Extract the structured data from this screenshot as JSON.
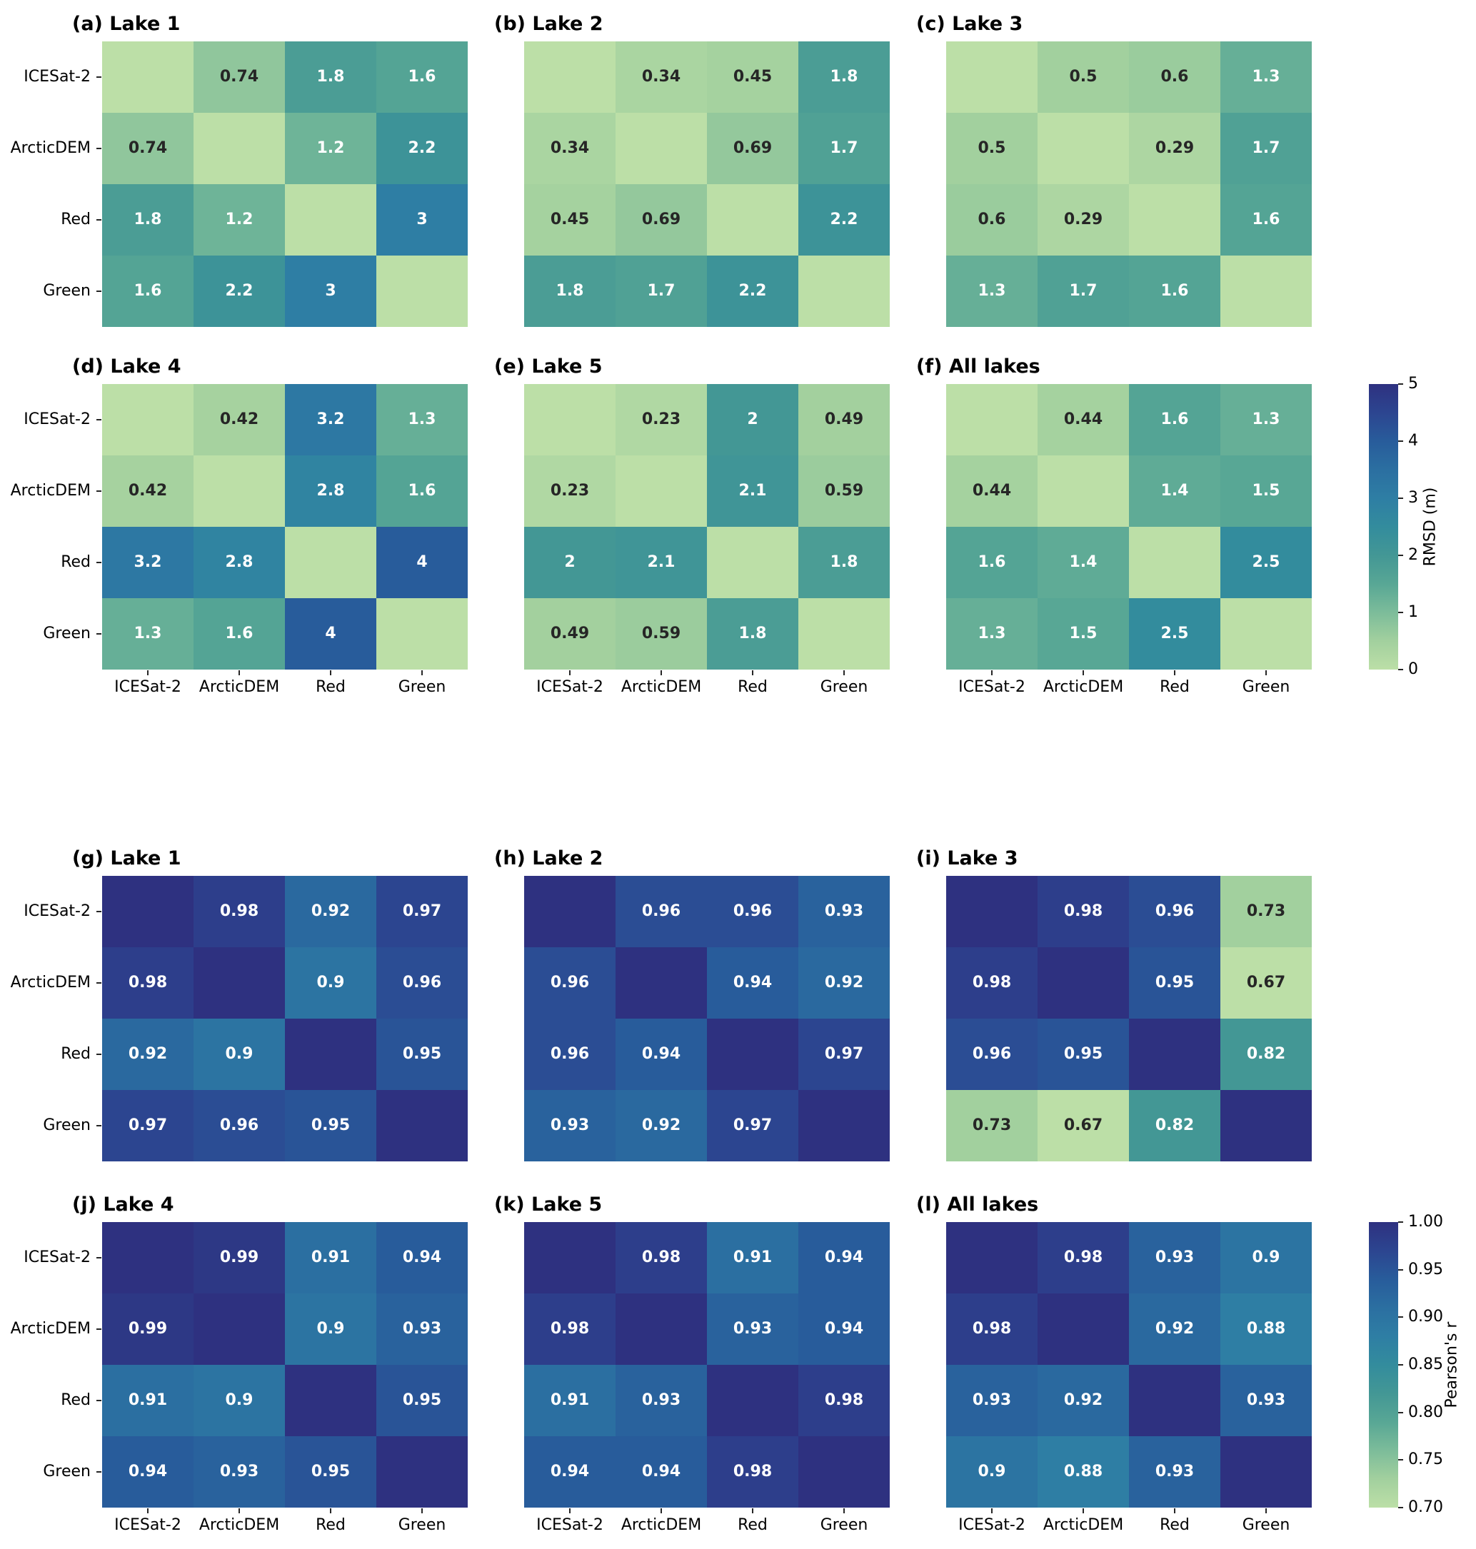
{
  "figure": {
    "background": "#ffffff",
    "text_dark": "#262626",
    "text_light": "#ffffff"
  },
  "chart_data": {
    "type": "heatmap",
    "categories": [
      "ICESat-2",
      "ArcticDEM",
      "Red",
      "Green"
    ],
    "colormap_stops": [
      [
        0.0,
        "#bcdfa7"
      ],
      [
        0.1,
        "#a2d09e"
      ],
      [
        0.2,
        "#7cbc9a"
      ],
      [
        0.3,
        "#58a795"
      ],
      [
        0.4,
        "#439795"
      ],
      [
        0.5,
        "#338c9d"
      ],
      [
        0.6,
        "#2e7ea4"
      ],
      [
        0.7,
        "#2b6fa1"
      ],
      [
        0.8,
        "#285c9b"
      ],
      [
        0.9,
        "#2c4590"
      ],
      [
        1.0,
        "#2e3180"
      ]
    ],
    "panels": [
      {
        "id": "a",
        "title": "(a) Lake 1",
        "metric": "RMSD (m)",
        "vmin": 0,
        "vmax": 5,
        "col": 0,
        "row": 0,
        "yticks": true,
        "xticks": false,
        "values": [
          [
            0,
            0.74,
            1.8,
            1.6
          ],
          [
            0.74,
            0,
            1.2,
            2.2
          ],
          [
            1.8,
            1.2,
            0,
            3
          ],
          [
            1.6,
            2.2,
            3,
            0
          ]
        ],
        "labels": [
          [
            "",
            "0.74",
            "1.8",
            "1.6"
          ],
          [
            "0.74",
            "",
            "1.2",
            "2.2"
          ],
          [
            "1.8",
            "1.2",
            "",
            "3"
          ],
          [
            "1.6",
            "2.2",
            "3",
            ""
          ]
        ]
      },
      {
        "id": "b",
        "title": "(b) Lake 2",
        "metric": "RMSD (m)",
        "vmin": 0,
        "vmax": 5,
        "col": 1,
        "row": 0,
        "yticks": false,
        "xticks": false,
        "values": [
          [
            0,
            0.34,
            0.45,
            1.8
          ],
          [
            0.34,
            0,
            0.69,
            1.7
          ],
          [
            0.45,
            0.69,
            0,
            2.2
          ],
          [
            1.8,
            1.7,
            2.2,
            0
          ]
        ],
        "labels": [
          [
            "",
            "0.34",
            "0.45",
            "1.8"
          ],
          [
            "0.34",
            "",
            "0.69",
            "1.7"
          ],
          [
            "0.45",
            "0.69",
            "",
            "2.2"
          ],
          [
            "1.8",
            "1.7",
            "2.2",
            ""
          ]
        ]
      },
      {
        "id": "c",
        "title": "(c) Lake 3",
        "metric": "RMSD (m)",
        "vmin": 0,
        "vmax": 5,
        "col": 2,
        "row": 0,
        "yticks": false,
        "xticks": false,
        "values": [
          [
            0,
            0.5,
            0.6,
            1.3
          ],
          [
            0.5,
            0,
            0.29,
            1.7
          ],
          [
            0.6,
            0.29,
            0,
            1.6
          ],
          [
            1.3,
            1.7,
            1.6,
            0
          ]
        ],
        "labels": [
          [
            "",
            "0.5",
            "0.6",
            "1.3"
          ],
          [
            "0.5",
            "",
            "0.29",
            "1.7"
          ],
          [
            "0.6",
            "0.29",
            "",
            "1.6"
          ],
          [
            "1.3",
            "1.7",
            "1.6",
            ""
          ]
        ]
      },
      {
        "id": "d",
        "title": "(d) Lake 4",
        "metric": "RMSD (m)",
        "vmin": 0,
        "vmax": 5,
        "col": 0,
        "row": 1,
        "yticks": true,
        "xticks": true,
        "values": [
          [
            0,
            0.42,
            3.2,
            1.3
          ],
          [
            0.42,
            0,
            2.8,
            1.6
          ],
          [
            3.2,
            2.8,
            0,
            4
          ],
          [
            1.3,
            1.6,
            4,
            0
          ]
        ],
        "labels": [
          [
            "",
            "0.42",
            "3.2",
            "1.3"
          ],
          [
            "0.42",
            "",
            "2.8",
            "1.6"
          ],
          [
            "3.2",
            "2.8",
            "",
            "4"
          ],
          [
            "1.3",
            "1.6",
            "4",
            ""
          ]
        ]
      },
      {
        "id": "e",
        "title": "(e) Lake 5",
        "metric": "RMSD (m)",
        "vmin": 0,
        "vmax": 5,
        "col": 1,
        "row": 1,
        "yticks": false,
        "xticks": true,
        "values": [
          [
            0,
            0.23,
            2,
            0.49
          ],
          [
            0.23,
            0,
            2.1,
            0.59
          ],
          [
            2,
            2.1,
            0,
            1.8
          ],
          [
            0.49,
            0.59,
            1.8,
            0
          ]
        ],
        "labels": [
          [
            "",
            "0.23",
            "2",
            "0.49"
          ],
          [
            "0.23",
            "",
            "2.1",
            "0.59"
          ],
          [
            "2",
            "2.1",
            "",
            "1.8"
          ],
          [
            "0.49",
            "0.59",
            "1.8",
            ""
          ]
        ]
      },
      {
        "id": "f",
        "title": "(f) All lakes",
        "metric": "RMSD (m)",
        "vmin": 0,
        "vmax": 5,
        "col": 2,
        "row": 1,
        "yticks": false,
        "xticks": true,
        "values": [
          [
            0,
            0.44,
            1.6,
            1.3
          ],
          [
            0.44,
            0,
            1.4,
            1.5
          ],
          [
            1.6,
            1.4,
            0,
            2.5
          ],
          [
            1.3,
            1.5,
            2.5,
            0
          ]
        ],
        "labels": [
          [
            "",
            "0.44",
            "1.6",
            "1.3"
          ],
          [
            "0.44",
            "",
            "1.4",
            "1.5"
          ],
          [
            "1.6",
            "1.4",
            "",
            "2.5"
          ],
          [
            "1.3",
            "1.5",
            "2.5",
            ""
          ]
        ]
      },
      {
        "id": "g",
        "title": "(g) Lake 1",
        "metric": "Pearson's r",
        "vmin": 0.7,
        "vmax": 1,
        "col": 0,
        "row": 2,
        "yticks": true,
        "xticks": false,
        "values": [
          [
            1,
            0.98,
            0.92,
            0.97
          ],
          [
            0.98,
            1,
            0.9,
            0.96
          ],
          [
            0.92,
            0.9,
            1,
            0.95
          ],
          [
            0.97,
            0.96,
            0.95,
            1
          ]
        ],
        "labels": [
          [
            "",
            "0.98",
            "0.92",
            "0.97"
          ],
          [
            "0.98",
            "",
            "0.9",
            "0.96"
          ],
          [
            "0.92",
            "0.9",
            "",
            "0.95"
          ],
          [
            "0.97",
            "0.96",
            "0.95",
            ""
          ]
        ]
      },
      {
        "id": "h",
        "title": "(h) Lake 2",
        "metric": "Pearson's r",
        "vmin": 0.7,
        "vmax": 1,
        "col": 1,
        "row": 2,
        "yticks": false,
        "xticks": false,
        "values": [
          [
            1,
            0.96,
            0.96,
            0.93
          ],
          [
            0.96,
            1,
            0.94,
            0.92
          ],
          [
            0.96,
            0.94,
            1,
            0.97
          ],
          [
            0.93,
            0.92,
            0.97,
            1
          ]
        ],
        "labels": [
          [
            "",
            "0.96",
            "0.96",
            "0.93"
          ],
          [
            "0.96",
            "",
            "0.94",
            "0.92"
          ],
          [
            "0.96",
            "0.94",
            "",
            "0.97"
          ],
          [
            "0.93",
            "0.92",
            "0.97",
            ""
          ]
        ]
      },
      {
        "id": "i",
        "title": "(i) Lake 3",
        "metric": "Pearson's r",
        "vmin": 0.7,
        "vmax": 1,
        "col": 2,
        "row": 2,
        "yticks": false,
        "xticks": false,
        "values": [
          [
            1,
            0.98,
            0.96,
            0.73
          ],
          [
            0.98,
            1,
            0.95,
            0.67
          ],
          [
            0.96,
            0.95,
            1,
            0.82
          ],
          [
            0.73,
            0.67,
            0.82,
            1
          ]
        ],
        "labels": [
          [
            "",
            "0.98",
            "0.96",
            "0.73"
          ],
          [
            "0.98",
            "",
            "0.95",
            "0.67"
          ],
          [
            "0.96",
            "0.95",
            "",
            "0.82"
          ],
          [
            "0.73",
            "0.67",
            "0.82",
            ""
          ]
        ]
      },
      {
        "id": "j",
        "title": "(j) Lake 4",
        "metric": "Pearson's r",
        "vmin": 0.7,
        "vmax": 1,
        "col": 0,
        "row": 3,
        "yticks": true,
        "xticks": true,
        "values": [
          [
            1,
            0.99,
            0.91,
            0.94
          ],
          [
            0.99,
            1,
            0.9,
            0.93
          ],
          [
            0.91,
            0.9,
            1,
            0.95
          ],
          [
            0.94,
            0.93,
            0.95,
            1
          ]
        ],
        "labels": [
          [
            "",
            "0.99",
            "0.91",
            "0.94"
          ],
          [
            "0.99",
            "",
            "0.9",
            "0.93"
          ],
          [
            "0.91",
            "0.9",
            "",
            "0.95"
          ],
          [
            "0.94",
            "0.93",
            "0.95",
            ""
          ]
        ]
      },
      {
        "id": "k",
        "title": "(k) Lake 5",
        "metric": "Pearson's r",
        "vmin": 0.7,
        "vmax": 1,
        "col": 1,
        "row": 3,
        "yticks": false,
        "xticks": true,
        "values": [
          [
            1,
            0.98,
            0.91,
            0.94
          ],
          [
            0.98,
            1,
            0.93,
            0.94
          ],
          [
            0.91,
            0.93,
            1,
            0.98
          ],
          [
            0.94,
            0.94,
            0.98,
            1
          ]
        ],
        "labels": [
          [
            "",
            "0.98",
            "0.91",
            "0.94"
          ],
          [
            "0.98",
            "",
            "0.93",
            "0.94"
          ],
          [
            "0.91",
            "0.93",
            "",
            "0.98"
          ],
          [
            "0.94",
            "0.94",
            "0.98",
            ""
          ]
        ]
      },
      {
        "id": "l",
        "title": "(l) All lakes",
        "metric": "Pearson's r",
        "vmin": 0.7,
        "vmax": 1,
        "col": 2,
        "row": 3,
        "yticks": false,
        "xticks": true,
        "values": [
          [
            1,
            0.98,
            0.93,
            0.9
          ],
          [
            0.98,
            1,
            0.92,
            0.88
          ],
          [
            0.93,
            0.92,
            1,
            0.93
          ],
          [
            0.9,
            0.88,
            0.93,
            1
          ]
        ],
        "labels": [
          [
            "",
            "0.98",
            "0.93",
            "0.9"
          ],
          [
            "0.98",
            "",
            "0.92",
            "0.88"
          ],
          [
            "0.93",
            "0.92",
            "",
            "0.93"
          ],
          [
            "0.9",
            "0.88",
            "0.93",
            ""
          ]
        ]
      }
    ],
    "colorbars": [
      {
        "label": "RMSD (m)",
        "vmin": 0,
        "vmax": 5,
        "row": 1,
        "ticks": [
          "5",
          "4",
          "3",
          "2",
          "1",
          "0"
        ],
        "label_x": 2003
      },
      {
        "label": "Pearson's r",
        "vmin": 0.7,
        "vmax": 1,
        "row": 3,
        "ticks": [
          "1.00",
          "0.95",
          "0.90",
          "0.85",
          "0.80",
          "0.75",
          "0.70"
        ],
        "label_x": 2033
      }
    ],
    "legend_position": "right",
    "grid": false
  }
}
